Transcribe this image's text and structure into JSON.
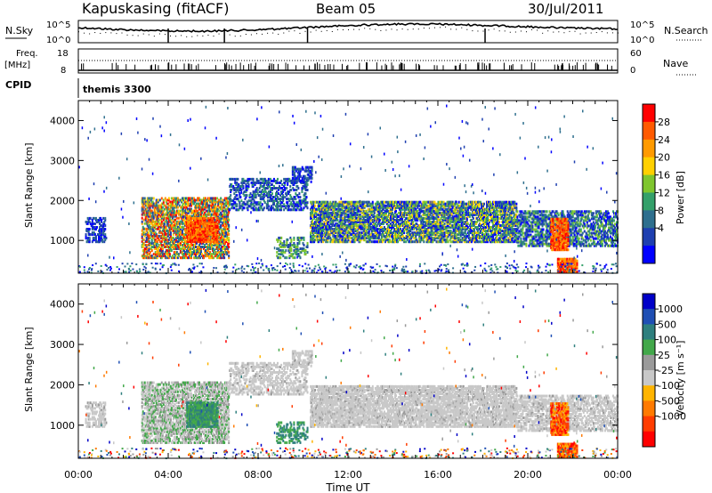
{
  "header": {
    "station": "Kapuskasing (fitACF)",
    "beam": "Beam 05",
    "date": "30/Jul/2011"
  },
  "panels": {
    "nsky": {
      "left_label": "N.Sky",
      "right_label": "N.Search",
      "tick_top": "10^5",
      "tick_bottom": "10^0"
    },
    "freq": {
      "left_label_1": "Freq.",
      "left_label_2": "[MHz]",
      "tick_top": "18",
      "tick_bottom": "8",
      "right_label": "Nave",
      "right_tick_top": "60",
      "right_tick_bottom": "0"
    },
    "cpid": {
      "label": "CPID",
      "value": "themis 3300"
    }
  },
  "colors": {
    "power": [
      "#0000ff",
      "#1e3fb0",
      "#2e6f8e",
      "#34a06a",
      "#7fc62e",
      "#ffd000",
      "#ff9a00",
      "#ff5a00",
      "#ff0000"
    ],
    "velocity": [
      "#0000c8",
      "#1f4fb4",
      "#2e7f7e",
      "#42a84a",
      "#9a9a9a",
      "#c8c8c8",
      "#ffb400",
      "#ff7a00",
      "#ff3c00",
      "#ff0000"
    ]
  },
  "chart_data": [
    {
      "type": "heatmap",
      "name": "power",
      "xlabel": "",
      "ylabel": "Slant Range [km]",
      "xlim": [
        "00:00",
        "24:00"
      ],
      "ylim": [
        180,
        4500
      ],
      "y_ticks": [
        "1000",
        "2000",
        "3000",
        "4000"
      ],
      "x_ticks": [
        "00:00",
        "04:00",
        "08:00",
        "12:00",
        "16:00",
        "20:00",
        "00:00"
      ],
      "colorbar": {
        "label": "Power [dB]",
        "ticks": [
          "4",
          "8",
          "12",
          "16",
          "20",
          "24",
          "28"
        ]
      },
      "grid": false
    },
    {
      "type": "heatmap",
      "name": "velocity",
      "xlabel": "Time UT",
      "ylabel": "Slant Range [km]",
      "xlim": [
        "00:00",
        "24:00"
      ],
      "ylim": [
        180,
        4500
      ],
      "y_ticks": [
        "1000",
        "2000",
        "3000",
        "4000"
      ],
      "x_ticks": [
        "00:00",
        "04:00",
        "08:00",
        "12:00",
        "16:00",
        "20:00",
        "00:00"
      ],
      "colorbar": {
        "label": "Velocity [m s⁻¹]",
        "ticks": [
          "1000",
          "500",
          "100",
          "25",
          "-25",
          "-100",
          "-500",
          "-1000"
        ]
      },
      "grid": false
    }
  ]
}
